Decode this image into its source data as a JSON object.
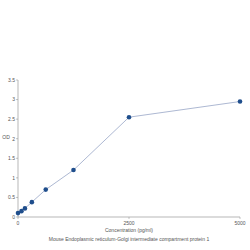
{
  "chart_data": {
    "type": "line",
    "title": "Mouse Endoplasmic reticulum-Golgi intermediate compartment protein 1",
    "x_label": "Concentration (pg/ml)",
    "y_label": "OD",
    "x": [
      0,
      78,
      156,
      312,
      625,
      1250,
      2500,
      5000
    ],
    "values": [
      0.1,
      0.15,
      0.22,
      0.38,
      0.7,
      1.2,
      2.55,
      2.95
    ],
    "color": "#1f4e8c",
    "marker": "circle",
    "xlim": [
      0,
      5000
    ],
    "xticks": [
      0,
      2500,
      5000
    ],
    "ylim": [
      0,
      3.5
    ],
    "yticks": [
      0,
      0.5,
      1,
      1.5,
      2,
      2.5,
      3,
      3.5
    ],
    "grid": false
  }
}
